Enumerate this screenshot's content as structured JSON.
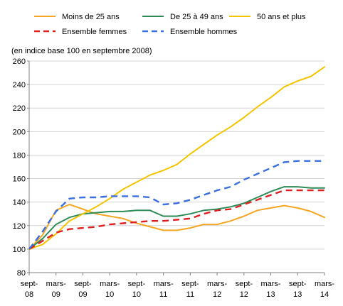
{
  "chart_data": {
    "type": "line",
    "title": "",
    "note": "(en indice base 100 en septembre 2008)",
    "xlabel": "",
    "ylabel": "",
    "ylim": [
      80,
      260
    ],
    "ytick_step": 20,
    "x_count": 23,
    "xticks": [
      {
        "index": 0,
        "line1": "sept-",
        "line2": "08"
      },
      {
        "index": 2,
        "line1": "mars-",
        "line2": "09"
      },
      {
        "index": 4,
        "line1": "sept-",
        "line2": "09"
      },
      {
        "index": 6,
        "line1": "mars-",
        "line2": "10"
      },
      {
        "index": 8,
        "line1": "sept-",
        "line2": "10"
      },
      {
        "index": 10,
        "line1": "mars-",
        "line2": "11"
      },
      {
        "index": 12,
        "line1": "sept-",
        "line2": "11"
      },
      {
        "index": 14,
        "line1": "mars-",
        "line2": "12"
      },
      {
        "index": 16,
        "line1": "sept-",
        "line2": "12"
      },
      {
        "index": 18,
        "line1": "mars-",
        "line2": "13"
      },
      {
        "index": 20,
        "line1": "sept-",
        "line2": "13"
      },
      {
        "index": 22,
        "line1": "mars-",
        "line2": "14"
      }
    ],
    "grid": {
      "horizontal": true,
      "vertical": false
    },
    "legend_position": "top",
    "series": [
      {
        "name": "Moins de 25 ans",
        "color": "#F5A623",
        "dash": "solid",
        "values": [
          100,
          112,
          133,
          138,
          134,
          130,
          128,
          126,
          122,
          119,
          116,
          116,
          118,
          121,
          121,
          124,
          128,
          133,
          135,
          137,
          135,
          132,
          127
        ]
      },
      {
        "name": "De 25 à 49 ans",
        "color": "#2E8B57",
        "dash": "solid",
        "values": [
          100,
          109,
          121,
          127,
          130,
          131,
          132,
          132,
          133,
          133,
          128,
          128,
          130,
          133,
          134,
          136,
          139,
          144,
          149,
          153,
          153,
          152,
          152
        ]
      },
      {
        "name": "50 ans et plus",
        "color": "#F5C400",
        "dash": "solid",
        "values": [
          100,
          104,
          113,
          124,
          130,
          136,
          143,
          151,
          157,
          163,
          167,
          172,
          181,
          189,
          197,
          204,
          212,
          221,
          229,
          238,
          243,
          247,
          255
        ]
      },
      {
        "name": "Ensemble femmes",
        "color": "#E02020",
        "dash": "dashed",
        "values": [
          100,
          107,
          114,
          117,
          118,
          119,
          121,
          122,
          123,
          124,
          124,
          125,
          126,
          130,
          133,
          134,
          138,
          142,
          146,
          150,
          150,
          150,
          150
        ]
      },
      {
        "name": "Ensemble hommes",
        "color": "#3A6FE0",
        "dash": "dashed",
        "values": [
          100,
          115,
          132,
          143,
          144,
          144,
          145,
          145,
          145,
          144,
          138,
          139,
          142,
          146,
          150,
          153,
          159,
          164,
          169,
          174,
          175,
          175,
          175
        ]
      }
    ]
  }
}
